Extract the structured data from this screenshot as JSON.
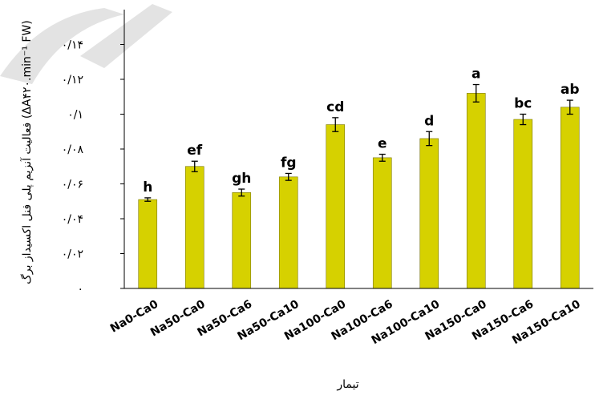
{
  "chart_data": {
    "type": "bar",
    "title": "",
    "xlabel": "تیمار",
    "ylabel": "فعالیت آنزیم پلی فنل اکسیداز برگ (ΔA۴۲۰.min⁻¹ FW)",
    "ylim": [
      0,
      0.16
    ],
    "yticks": [
      0,
      0.02,
      0.04,
      0.06,
      0.08,
      0.1,
      0.12,
      0.14
    ],
    "ytick_labels": [
      "۰",
      "۰/۰۲",
      "۰/۰۴",
      "۰/۰۶",
      "۰/۰۸",
      "۰/۱",
      "۰/۱۲",
      "۰/۱۴"
    ],
    "grid": false,
    "bar_color": "#d6d100",
    "categories": [
      "Na0-Ca0",
      "Na50-Ca0",
      "Na50-Ca6",
      "Na50-Ca10",
      "Na100-Ca0",
      "Na100-Ca6",
      "Na100-Ca10",
      "Na150-Ca0",
      "Na150-Ca6",
      "Na150-Ca10"
    ],
    "values": [
      0.051,
      0.07,
      0.055,
      0.064,
      0.094,
      0.075,
      0.086,
      0.112,
      0.097,
      0.104
    ],
    "errors": [
      0.001,
      0.003,
      0.002,
      0.002,
      0.004,
      0.002,
      0.004,
      0.005,
      0.003,
      0.004
    ],
    "significance_letters": [
      "h",
      "ef",
      "gh",
      "fg",
      "cd",
      "e",
      "d",
      "a",
      "bc",
      "ab"
    ]
  }
}
